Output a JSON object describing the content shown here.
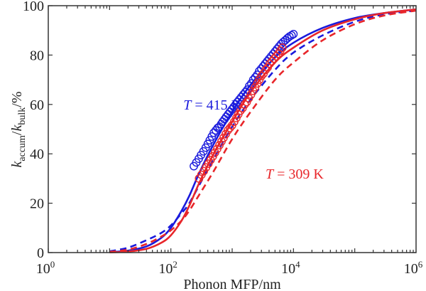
{
  "chart_data": {
    "type": "line",
    "title": "",
    "xlabel": "Phonon MFP/nm",
    "ylabel": {
      "main": "k",
      "sub1": "accum",
      "slash": "/k",
      "sub2": "bulk",
      "unit": "/%"
    },
    "xscale": "log",
    "xlim": [
      1,
      1000000
    ],
    "ylim": [
      0,
      100
    ],
    "x_ticks": [
      {
        "base": "10",
        "exp": "0",
        "value": 1
      },
      {
        "base": "10",
        "exp": "2",
        "value": 100
      },
      {
        "base": "10",
        "exp": "4",
        "value": 10000
      },
      {
        "base": "10",
        "exp": "6",
        "value": 1000000
      }
    ],
    "y_ticks": [
      0,
      20,
      40,
      60,
      80,
      100
    ],
    "grid": false,
    "colors": {
      "blue": "#1a1adc",
      "red": "#e8262a",
      "axis": "#333333"
    },
    "annotations": [
      {
        "italic": "T",
        "text": " = 415 K",
        "color": "blue",
        "x": 160,
        "y": 60
      },
      {
        "italic": "T",
        "text": " = 309 K",
        "color": "red",
        "x": 3500,
        "y": 32
      }
    ],
    "series": [
      {
        "name": "415 K solid",
        "color": "blue",
        "style": "solid",
        "x": [
          10,
          20,
          40,
          70,
          100,
          150,
          200,
          300,
          500,
          1000,
          2000,
          5000,
          10000,
          30000,
          100000,
          300000,
          1000000
        ],
        "y": [
          0.2,
          0.8,
          2.5,
          6,
          10,
          17,
          23,
          33,
          44,
          57,
          68,
          79,
          85,
          91,
          95,
          97,
          98.5
        ]
      },
      {
        "name": "415 K dashed",
        "color": "blue",
        "style": "dashed",
        "x": [
          10,
          20,
          40,
          70,
          100,
          150,
          200,
          300,
          500,
          1000,
          2000,
          5000,
          10000,
          30000,
          100000,
          300000,
          1000000
        ],
        "y": [
          0.5,
          2,
          5,
          8,
          11,
          16,
          20,
          28,
          38,
          51,
          62,
          74,
          81,
          88,
          93.5,
          96.5,
          98
        ]
      },
      {
        "name": "309 K solid",
        "color": "red",
        "style": "solid",
        "x": [
          10,
          20,
          40,
          70,
          100,
          150,
          200,
          300,
          500,
          1000,
          2000,
          5000,
          10000,
          30000,
          100000,
          300000,
          1000000
        ],
        "y": [
          0.1,
          0.4,
          1.5,
          4,
          7,
          13,
          19,
          29,
          40,
          53,
          65,
          77,
          83,
          90,
          94.5,
          97,
          98.5
        ]
      },
      {
        "name": "309 K dashed",
        "color": "red",
        "style": "dashed",
        "x": [
          10,
          20,
          40,
          70,
          100,
          150,
          200,
          300,
          500,
          1000,
          2000,
          5000,
          10000,
          30000,
          100000,
          300000,
          1000000
        ],
        "y": [
          0.3,
          1.2,
          3.5,
          6.5,
          9,
          13,
          17,
          24,
          33,
          46,
          57,
          70,
          77,
          86,
          92.5,
          96,
          98
        ]
      },
      {
        "name": "415 K measured",
        "color": "blue",
        "style": "markers",
        "x_range": [
          237,
          10000
        ],
        "y_range": [
          35,
          88.5
        ],
        "x": [
          237,
          260,
          285,
          310,
          340,
          370,
          400,
          430,
          465,
          500,
          540,
          580,
          620,
          660,
          700,
          750,
          800,
          860,
          920,
          990,
          1060,
          1140,
          1220,
          1310,
          1410,
          1520,
          1640,
          1770,
          1900,
          2050,
          2210,
          2380,
          2560,
          2760,
          2980,
          3210,
          3460,
          3730,
          4020,
          4330,
          4670,
          5030,
          5420,
          5840,
          6300,
          6800,
          7350,
          7950,
          8600,
          9300,
          10000
        ],
        "y": [
          35,
          36.5,
          38,
          39.5,
          41,
          42.5,
          44,
          45.5,
          47,
          48.5,
          49.5,
          50.5,
          51,
          52,
          53,
          54,
          55,
          56,
          57,
          58,
          59,
          60,
          61,
          62,
          63,
          64,
          65,
          66,
          67.5,
          68.5,
          70,
          71,
          72,
          73.5,
          74.5,
          75.5,
          76.5,
          77.5,
          78.5,
          79.5,
          80.5,
          81.5,
          82.5,
          83.5,
          84.5,
          85.3,
          86,
          86.8,
          87.5,
          88,
          88.5
        ]
      },
      {
        "name": "309 K measured",
        "color": "red",
        "style": "markers",
        "x_range": [
          288,
          6600
        ],
        "y_range": [
          30,
          83
        ],
        "x": [
          288,
          315,
          345,
          375,
          410,
          445,
          485,
          525,
          570,
          620,
          670,
          725,
          785,
          850,
          920,
          995,
          1080,
          1170,
          1260,
          1370,
          1480,
          1600,
          1730,
          1870,
          2030,
          2190,
          2370,
          2570,
          2780,
          3000,
          3250,
          3520,
          3800,
          4110,
          4450,
          4820,
          5210,
          5640,
          6100,
          6600
        ],
        "y": [
          30,
          31.5,
          33,
          34.5,
          36,
          37.5,
          39,
          40.5,
          42,
          43.5,
          45,
          46.5,
          48,
          49.5,
          50.5,
          51.5,
          53,
          54.5,
          56,
          57.5,
          58.5,
          60,
          61,
          62.5,
          64,
          65.5,
          67,
          68.5,
          70,
          71.5,
          72.5,
          74,
          75,
          76.5,
          77.5,
          78.5,
          79.5,
          80.5,
          81.8,
          83
        ]
      }
    ]
  }
}
